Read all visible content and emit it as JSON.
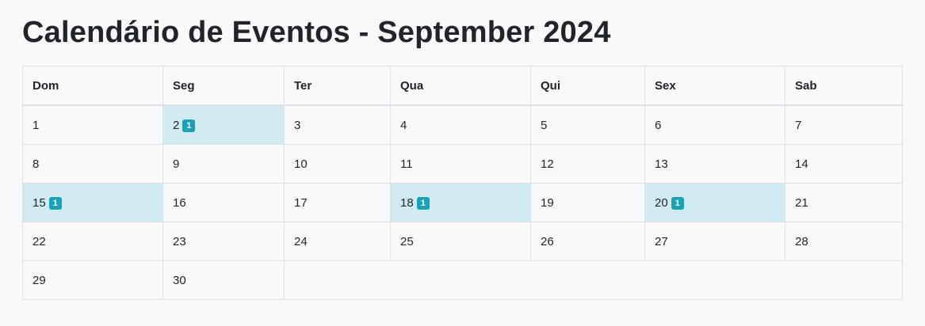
{
  "page": {
    "title": "Calendário de Eventos - September 2024"
  },
  "calendar": {
    "weekdays": [
      "Dom",
      "Seg",
      "Ter",
      "Qua",
      "Qui",
      "Sex",
      "Sab"
    ],
    "weeks": [
      [
        {
          "day": "1"
        },
        {
          "day": "2",
          "events": "1"
        },
        {
          "day": "3"
        },
        {
          "day": "4"
        },
        {
          "day": "5"
        },
        {
          "day": "6"
        },
        {
          "day": "7"
        }
      ],
      [
        {
          "day": "8"
        },
        {
          "day": "9"
        },
        {
          "day": "10"
        },
        {
          "day": "11"
        },
        {
          "day": "12"
        },
        {
          "day": "13"
        },
        {
          "day": "14"
        }
      ],
      [
        {
          "day": "15",
          "events": "1"
        },
        {
          "day": "16"
        },
        {
          "day": "17"
        },
        {
          "day": "18",
          "events": "1"
        },
        {
          "day": "19"
        },
        {
          "day": "20",
          "events": "1"
        },
        {
          "day": "21"
        }
      ],
      [
        {
          "day": "22"
        },
        {
          "day": "23"
        },
        {
          "day": "24"
        },
        {
          "day": "25"
        },
        {
          "day": "26"
        },
        {
          "day": "27"
        },
        {
          "day": "28"
        }
      ],
      [
        {
          "day": "29"
        },
        {
          "day": "30"
        }
      ]
    ]
  },
  "colors": {
    "event_cell_bg": "#d1ecf1",
    "badge_bg": "#17a2b8",
    "border": "#dee2e6",
    "page_bg": "#f8f9fa",
    "text": "#212529"
  }
}
